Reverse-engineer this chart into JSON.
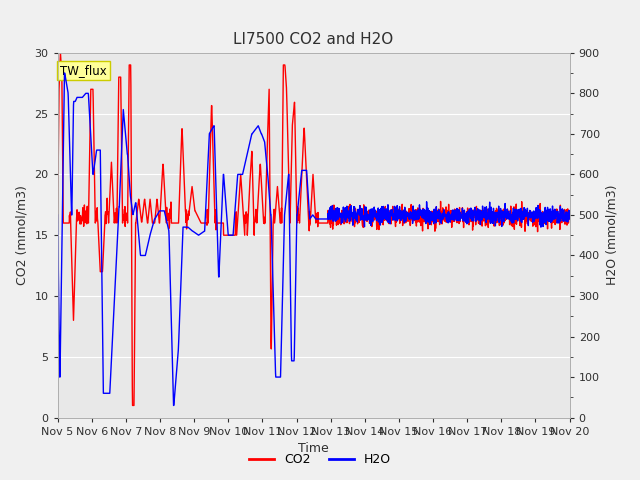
{
  "title": "LI7500 CO2 and H2O",
  "xlabel": "Time",
  "ylabel_left": "CO2 (mmol/m3)",
  "ylabel_right": "H2O (mmol/m3)",
  "co2_color": "#FF0000",
  "h2o_color": "#0000FF",
  "co2_label": "CO2",
  "h2o_label": "H2O",
  "ylim_left": [
    0,
    30
  ],
  "ylim_right": [
    0,
    900
  ],
  "fig_bg_color": "#F0F0F0",
  "plot_bg_color": "#E8E8E8",
  "grid_color": "#FFFFFF",
  "text_color": "#303030",
  "legend_box_facecolor": "#FFFF99",
  "legend_box_edgecolor": "#CCCC00",
  "legend_box_text": "TW_flux",
  "title_fontsize": 11,
  "axis_label_fontsize": 9,
  "tick_fontsize": 8,
  "linewidth": 1.0
}
